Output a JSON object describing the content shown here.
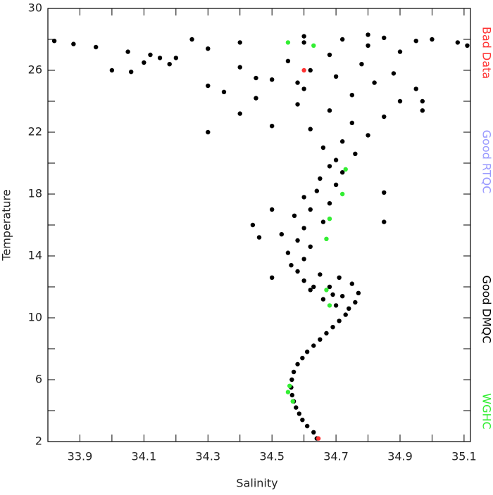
{
  "chart_data": {
    "type": "scatter",
    "x_label": "Salinity",
    "y_label": "Temperature",
    "xlim": [
      33.8,
      35.12
    ],
    "ylim": [
      2,
      30
    ],
    "xticks": [
      33.9,
      34.1,
      34.3,
      34.5,
      34.7,
      34.9,
      35.1
    ],
    "xminorticks": [
      34.0,
      34.2,
      34.4,
      34.6,
      34.8,
      35.0
    ],
    "yticks": [
      2,
      6,
      10,
      14,
      18,
      22,
      26,
      30
    ],
    "yminorticks": [
      4,
      8,
      12,
      16,
      20,
      24,
      28
    ],
    "series": [
      {
        "name": "Bad Data",
        "color": "#ff3333",
        "x": [
          34.645,
          34.6
        ],
        "values": [
          2.2,
          26
        ]
      },
      {
        "name": "Good RTQC",
        "color": "#9999ff",
        "x": [],
        "values": []
      },
      {
        "name": "Good DMQC",
        "color": "#000000",
        "x": [
          34.64,
          34.63,
          34.61,
          34.595,
          34.585,
          34.575,
          34.568,
          34.563,
          34.56,
          34.562,
          34.568,
          34.58,
          34.595,
          34.61,
          34.63,
          34.65,
          34.67,
          34.69,
          34.71,
          34.73,
          34.74,
          34.7,
          34.76,
          34.66,
          34.72,
          34.77,
          34.62,
          34.68,
          34.75,
          34.6,
          34.71,
          34.65,
          34.58,
          34.69,
          34.63,
          34.56,
          34.6,
          34.55,
          34.62,
          34.58,
          34.53,
          34.6,
          34.66,
          34.46,
          34.44,
          34.85,
          34.57,
          34.62,
          34.68,
          34.6,
          34.64,
          34.7,
          34.65,
          34.72,
          34.68,
          34.5,
          34.85,
          34.5,
          34.7,
          34.76,
          34.66,
          34.72,
          34.8,
          34.62,
          34.5,
          34.75,
          34.85,
          34.4,
          34.68,
          34.58,
          34.9,
          34.45,
          34.75,
          34.35,
          34.6,
          34.3,
          34.82,
          34.97,
          34.97,
          34.95,
          34.3,
          34.5,
          34.7,
          34.88,
          34.62,
          34.4,
          34.78,
          34.55,
          34.2,
          34.68,
          34.9,
          34.3,
          34.8,
          34.6,
          34.72,
          34.85,
          34.95,
          35.0,
          35.08,
          35.11,
          33.82,
          33.88,
          33.95,
          34.05,
          34.12,
          34.15,
          34.0,
          34.06,
          34.25,
          34.4,
          34.6,
          34.8,
          34.1,
          34.18,
          34.45,
          34.58
        ],
        "values": [
          2.2,
          2.6,
          3,
          3.4,
          3.8,
          4.2,
          4.6,
          5,
          5.5,
          6,
          6.5,
          7,
          7.4,
          7.8,
          8.2,
          8.6,
          9,
          9.4,
          9.8,
          10.2,
          10.6,
          10.8,
          11,
          11.2,
          11.4,
          11.6,
          11.8,
          12,
          12.2,
          12.4,
          12.6,
          12.8,
          13,
          11.5,
          12,
          13.4,
          13.8,
          14.2,
          14.6,
          15,
          15.4,
          15.8,
          16.2,
          15.2,
          16,
          16.2,
          16.6,
          17,
          17.4,
          17.8,
          18.2,
          18.6,
          19,
          19.4,
          19.8,
          17,
          18.1,
          12.6,
          20.2,
          20.6,
          21,
          21.4,
          21.8,
          22.2,
          22.4,
          22.6,
          23,
          23.2,
          23.4,
          23.8,
          24,
          24.2,
          24.4,
          24.6,
          24.8,
          25,
          25.2,
          24,
          23.4,
          24.8,
          22,
          25.4,
          25.6,
          25.8,
          26,
          26.2,
          26.4,
          26.6,
          26.8,
          27,
          27.2,
          27.4,
          27.6,
          27.8,
          28,
          28.1,
          27.9,
          28,
          27.8,
          27.6,
          27.9,
          27.7,
          27.5,
          27.2,
          27,
          26.8,
          26,
          25.9,
          28,
          27.8,
          28.2,
          28.3,
          26.5,
          26.4,
          25.5,
          25.2
        ]
      },
      {
        "name": "WGHC",
        "color": "#33ee33",
        "x": [
          34.55,
          34.555,
          34.565,
          34.68,
          34.67,
          34.67,
          34.68,
          34.72,
          34.63,
          34.55,
          34.73
        ],
        "values": [
          5.2,
          5.6,
          4.6,
          10.8,
          11.8,
          15.1,
          16.4,
          18,
          27.6,
          27.8,
          19.6
        ]
      }
    ]
  }
}
